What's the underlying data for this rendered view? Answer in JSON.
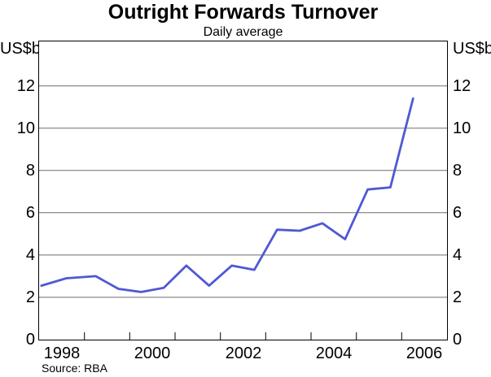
{
  "header": {
    "title": "Outright Forwards Turnover",
    "subtitle": "Daily average"
  },
  "axes": {
    "unit_left": "US$b",
    "unit_right": "US$b"
  },
  "footer": {
    "source": "Source: RBA"
  },
  "chart_data": {
    "type": "line",
    "title": "Outright Forwards Turnover",
    "subtitle": "Daily average",
    "ylabel": "US$b",
    "ylim": [
      0,
      14.1
    ],
    "yticks_labeled": [
      0,
      2,
      4,
      6,
      8,
      10,
      12
    ],
    "xlim": [
      1998,
      2007
    ],
    "xtick_marks_years": [
      1999,
      2000,
      2001,
      2002,
      2003,
      2004,
      2005,
      2006
    ],
    "xtick_labels": [
      {
        "label": "1998",
        "x": 1998.5
      },
      {
        "label": "2000",
        "x": 2000.5
      },
      {
        "label": "2002",
        "x": 2002.5
      },
      {
        "label": "2004",
        "x": 2004.5
      },
      {
        "label": "2006",
        "x": 2006.5
      }
    ],
    "grid": "horizontal",
    "grid_color": "#6e6e6e",
    "axis_color": "#000000",
    "line_color": "#4e59d3",
    "line_width": 2.8,
    "legend": "none",
    "series": [
      {
        "name": "Outright forwards turnover (daily average)",
        "unit": "US$b",
        "points": [
          {
            "period": "1998 H1",
            "x": 1998.05,
            "y": 2.55
          },
          {
            "period": "1998 H2",
            "x": 1998.6,
            "y": 2.9
          },
          {
            "period": "1999 H1",
            "x": 1999.25,
            "y": 3.0
          },
          {
            "period": "1999 H2",
            "x": 1999.75,
            "y": 2.4
          },
          {
            "period": "2000 H1",
            "x": 2000.25,
            "y": 2.25
          },
          {
            "period": "2000 H2",
            "x": 2000.75,
            "y": 2.45
          },
          {
            "period": "2001 H1",
            "x": 2001.25,
            "y": 3.5
          },
          {
            "period": "2001 H2",
            "x": 2001.75,
            "y": 2.55
          },
          {
            "period": "2002 H1",
            "x": 2002.25,
            "y": 3.5
          },
          {
            "period": "2002 H2",
            "x": 2002.75,
            "y": 3.3
          },
          {
            "period": "2003 H1",
            "x": 2003.25,
            "y": 5.2
          },
          {
            "period": "2003 H2",
            "x": 2003.75,
            "y": 5.15
          },
          {
            "period": "2004 H1",
            "x": 2004.25,
            "y": 5.5
          },
          {
            "period": "2004 H2",
            "x": 2004.75,
            "y": 4.75
          },
          {
            "period": "2005 H1",
            "x": 2005.25,
            "y": 7.1
          },
          {
            "period": "2005 H2",
            "x": 2005.75,
            "y": 7.2
          },
          {
            "period": "2006 H1",
            "x": 2006.25,
            "y": 11.4
          }
        ]
      }
    ],
    "source": "Source: RBA"
  }
}
